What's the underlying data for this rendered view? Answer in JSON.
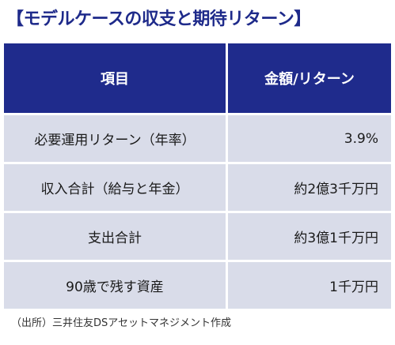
{
  "title": "【モデルケースの収支と期待リターン】",
  "table": {
    "headers": [
      "項目",
      "金額/リターン"
    ],
    "rows": [
      [
        "必要運用リターン（年率）",
        "3.9%"
      ],
      [
        "収入合計（給与と年金）",
        "約2億3千万円"
      ],
      [
        "支出合計",
        "約3億1千万円"
      ],
      [
        "90歳で残す資産",
        "1千万円"
      ]
    ]
  },
  "source": "（出所）三井住友DSアセットマネジメント作成",
  "colors": {
    "title": "#1e2a8a",
    "header_bg": "#1f2b8c",
    "row_bg": "#d9dce9"
  }
}
